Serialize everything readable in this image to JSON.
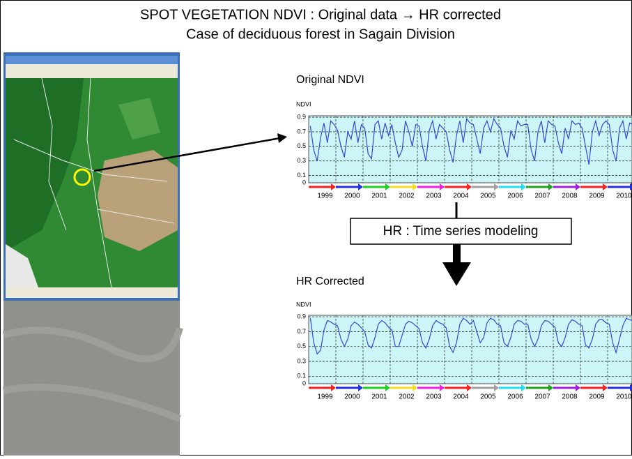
{
  "title": "SPOT VEGETATION NDVI : Original data  → HR corrected",
  "subtitle": "Case of deciduous forest in Sagain Division",
  "method_label": "HR : Time series  modeling",
  "chart_data": [
    {
      "type": "line",
      "title": "Original NDVI",
      "ylabel": "NDVI",
      "color": "#3347d6",
      "categories": [
        "1999",
        "2000",
        "2001",
        "2002",
        "2003",
        "2004",
        "2005",
        "2006",
        "2007",
        "2008",
        "2009",
        "2010"
      ],
      "category_colors": [
        "#ff2020",
        "#2030e0",
        "#20d020",
        "#f0e020",
        "#f020e0",
        "#ff2020",
        "#a0a0a0",
        "#20e0f0",
        "#20a020",
        "#a020e0",
        "#ff2020",
        "#2030e0"
      ],
      "ylim": [
        0,
        0.92
      ],
      "yticks": [
        0,
        0.1,
        0.3,
        0.5,
        0.7,
        0.9
      ],
      "grid": true,
      "values": [
        [
          0.78,
          0.45,
          0.3,
          0.62,
          0.82,
          0.55,
          0.85,
          0.8
        ],
        [
          0.72,
          0.5,
          0.35,
          0.7,
          0.6,
          0.85,
          0.55,
          0.8
        ],
        [
          0.75,
          0.4,
          0.33,
          0.8,
          0.85,
          0.6,
          0.82,
          0.65
        ],
        [
          0.8,
          0.55,
          0.35,
          0.45,
          0.85,
          0.7,
          0.5,
          0.8
        ],
        [
          0.78,
          0.5,
          0.3,
          0.72,
          0.85,
          0.6,
          0.8,
          0.75
        ],
        [
          0.7,
          0.45,
          0.28,
          0.65,
          0.85,
          0.55,
          0.88,
          0.82
        ],
        [
          0.8,
          0.6,
          0.4,
          0.75,
          0.85,
          0.7,
          0.88,
          0.8
        ],
        [
          0.75,
          0.5,
          0.35,
          0.72,
          0.6,
          0.85,
          0.78,
          0.8
        ],
        [
          0.8,
          0.45,
          0.3,
          0.7,
          0.85,
          0.55,
          0.85,
          0.8
        ],
        [
          0.78,
          0.55,
          0.4,
          0.75,
          0.6,
          0.85,
          0.8,
          0.82
        ],
        [
          0.75,
          0.5,
          0.25,
          0.7,
          0.85,
          0.65,
          0.8,
          0.85
        ],
        [
          0.8,
          0.45,
          0.3,
          0.75,
          0.85,
          0.6,
          0.82,
          0.8
        ]
      ]
    },
    {
      "type": "line",
      "title": "HR Corrected",
      "ylabel": "NDVI",
      "color": "#3347d6",
      "categories": [
        "1999",
        "2000",
        "2001",
        "2002",
        "2003",
        "2004",
        "2005",
        "2006",
        "2007",
        "2008",
        "2009",
        "2010"
      ],
      "category_colors": [
        "#ff2020",
        "#2030e0",
        "#20d020",
        "#f0e020",
        "#f020e0",
        "#ff2020",
        "#a0a0a0",
        "#20e0f0",
        "#20a020",
        "#a020e0",
        "#ff2020",
        "#2030e0"
      ],
      "ylim": [
        0,
        0.92
      ],
      "yticks": [
        0,
        0.1,
        0.3,
        0.5,
        0.7,
        0.9
      ],
      "grid": true,
      "values": [
        [
          0.88,
          0.55,
          0.4,
          0.45,
          0.72,
          0.85,
          0.83,
          0.8
        ],
        [
          0.78,
          0.6,
          0.5,
          0.6,
          0.78,
          0.83,
          0.8,
          0.75
        ],
        [
          0.7,
          0.52,
          0.48,
          0.62,
          0.8,
          0.85,
          0.82,
          0.76
        ],
        [
          0.72,
          0.5,
          0.5,
          0.65,
          0.8,
          0.84,
          0.82,
          0.78
        ],
        [
          0.74,
          0.55,
          0.48,
          0.6,
          0.78,
          0.85,
          0.82,
          0.8
        ],
        [
          0.75,
          0.5,
          0.42,
          0.55,
          0.8,
          0.88,
          0.85,
          0.8
        ],
        [
          0.85,
          0.7,
          0.55,
          0.62,
          0.82,
          0.88,
          0.86,
          0.8
        ],
        [
          0.78,
          0.55,
          0.5,
          0.62,
          0.8,
          0.85,
          0.84,
          0.8
        ],
        [
          0.8,
          0.6,
          0.5,
          0.6,
          0.78,
          0.85,
          0.84,
          0.8
        ],
        [
          0.76,
          0.55,
          0.5,
          0.62,
          0.8,
          0.86,
          0.84,
          0.8
        ],
        [
          0.78,
          0.52,
          0.48,
          0.6,
          0.8,
          0.86,
          0.86,
          0.82
        ],
        [
          0.8,
          0.55,
          0.42,
          0.6,
          0.78,
          0.88,
          0.86,
          0.85
        ]
      ]
    }
  ]
}
